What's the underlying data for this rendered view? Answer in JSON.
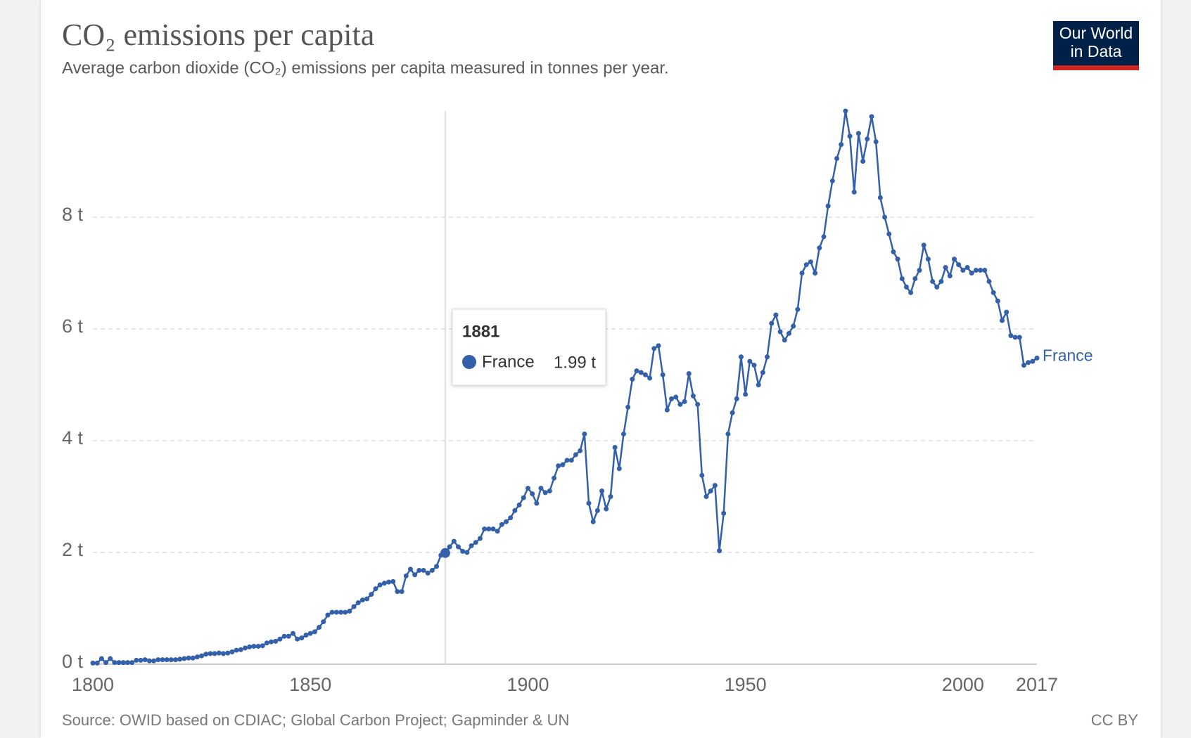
{
  "chart_data": {
    "type": "line",
    "title": "CO₂ emissions per capita",
    "subtitle": "Average carbon dioxide (CO₂) emissions per capita measured in tonnes per year.",
    "source": "Source: OWID based on CDIAC; Global Carbon Project; Gapminder & UN",
    "license": "CC BY",
    "logo": [
      "Our World",
      "in Data"
    ],
    "x": [
      1800,
      1801,
      1802,
      1803,
      1804,
      1805,
      1806,
      1807,
      1808,
      1809,
      1810,
      1811,
      1812,
      1813,
      1814,
      1815,
      1816,
      1817,
      1818,
      1819,
      1820,
      1821,
      1822,
      1823,
      1824,
      1825,
      1826,
      1827,
      1828,
      1829,
      1830,
      1831,
      1832,
      1833,
      1834,
      1835,
      1836,
      1837,
      1838,
      1839,
      1840,
      1841,
      1842,
      1843,
      1844,
      1845,
      1846,
      1847,
      1848,
      1849,
      1850,
      1851,
      1852,
      1853,
      1854,
      1855,
      1856,
      1857,
      1858,
      1859,
      1860,
      1861,
      1862,
      1863,
      1864,
      1865,
      1866,
      1867,
      1868,
      1869,
      1870,
      1871,
      1872,
      1873,
      1874,
      1875,
      1876,
      1877,
      1878,
      1879,
      1880,
      1881,
      1882,
      1883,
      1884,
      1885,
      1886,
      1887,
      1888,
      1889,
      1890,
      1891,
      1892,
      1893,
      1894,
      1895,
      1896,
      1897,
      1898,
      1899,
      1900,
      1901,
      1902,
      1903,
      1904,
      1905,
      1906,
      1907,
      1908,
      1909,
      1910,
      1911,
      1912,
      1913,
      1914,
      1915,
      1916,
      1917,
      1918,
      1919,
      1920,
      1921,
      1922,
      1923,
      1924,
      1925,
      1926,
      1927,
      1928,
      1929,
      1930,
      1931,
      1932,
      1933,
      1934,
      1935,
      1936,
      1937,
      1938,
      1939,
      1940,
      1941,
      1942,
      1943,
      1944,
      1945,
      1946,
      1947,
      1948,
      1949,
      1950,
      1951,
      1952,
      1953,
      1954,
      1955,
      1956,
      1957,
      1958,
      1959,
      1960,
      1961,
      1962,
      1963,
      1964,
      1965,
      1966,
      1967,
      1968,
      1969,
      1970,
      1971,
      1972,
      1973,
      1974,
      1975,
      1976,
      1977,
      1978,
      1979,
      1980,
      1981,
      1982,
      1983,
      1984,
      1985,
      1986,
      1987,
      1988,
      1989,
      1990,
      1991,
      1992,
      1993,
      1994,
      1995,
      1996,
      1997,
      1998,
      1999,
      2000,
      2001,
      2002,
      2003,
      2004,
      2005,
      2006,
      2007,
      2008,
      2009,
      2010,
      2011,
      2012,
      2013,
      2014,
      2015,
      2016,
      2017
    ],
    "series": [
      {
        "name": "France",
        "color": "#3360a9",
        "values": [
          0.02,
          0.02,
          0.1,
          0.03,
          0.1,
          0.03,
          0.03,
          0.03,
          0.03,
          0.03,
          0.07,
          0.07,
          0.08,
          0.06,
          0.06,
          0.08,
          0.08,
          0.08,
          0.08,
          0.08,
          0.09,
          0.1,
          0.11,
          0.11,
          0.13,
          0.15,
          0.18,
          0.19,
          0.19,
          0.2,
          0.19,
          0.2,
          0.22,
          0.25,
          0.26,
          0.29,
          0.31,
          0.32,
          0.32,
          0.33,
          0.38,
          0.4,
          0.41,
          0.45,
          0.5,
          0.5,
          0.55,
          0.45,
          0.47,
          0.52,
          0.55,
          0.58,
          0.66,
          0.76,
          0.88,
          0.93,
          0.93,
          0.93,
          0.93,
          0.95,
          1.03,
          1.1,
          1.15,
          1.17,
          1.25,
          1.35,
          1.42,
          1.45,
          1.47,
          1.48,
          1.3,
          1.3,
          1.58,
          1.7,
          1.6,
          1.68,
          1.68,
          1.63,
          1.68,
          1.75,
          1.95,
          1.99,
          2.1,
          2.2,
          2.1,
          2.02,
          2.0,
          2.12,
          2.18,
          2.25,
          2.42,
          2.42,
          2.42,
          2.38,
          2.5,
          2.55,
          2.62,
          2.75,
          2.85,
          2.98,
          3.15,
          3.05,
          2.88,
          3.15,
          3.07,
          3.1,
          3.33,
          3.55,
          3.57,
          3.65,
          3.65,
          3.75,
          3.82,
          4.12,
          2.88,
          2.55,
          2.75,
          3.1,
          2.78,
          3.0,
          3.88,
          3.5,
          4.12,
          4.6,
          5.1,
          5.25,
          5.22,
          5.18,
          5.12,
          5.65,
          5.7,
          5.18,
          4.55,
          4.75,
          4.78,
          4.65,
          4.7,
          5.2,
          4.8,
          4.65,
          3.38,
          3.0,
          3.1,
          3.2,
          2.03,
          2.7,
          4.12,
          4.5,
          4.75,
          5.5,
          4.83,
          5.42,
          5.35,
          5.0,
          5.22,
          5.5,
          6.1,
          6.25,
          5.95,
          5.8,
          5.92,
          6.05,
          6.35,
          7.0,
          7.15,
          7.2,
          7.0,
          7.45,
          7.65,
          8.2,
          8.65,
          9.05,
          9.3,
          9.9,
          9.45,
          8.45,
          9.5,
          9.0,
          9.4,
          9.8,
          9.35,
          8.35,
          8.0,
          7.7,
          7.38,
          7.25,
          6.9,
          6.75,
          6.65,
          6.9,
          7.05,
          7.5,
          7.25,
          6.85,
          6.75,
          6.85,
          7.1,
          6.95,
          7.25,
          7.15,
          7.05,
          7.1,
          7.0,
          7.05,
          7.05,
          7.05,
          6.85,
          6.65,
          6.5,
          6.15,
          6.3,
          5.88,
          5.85,
          5.85,
          5.35,
          5.4,
          5.42,
          5.48
        ]
      }
    ],
    "xlim": [
      1800,
      2017
    ],
    "xticks": [
      1800,
      1850,
      1900,
      1950,
      2000,
      2017
    ],
    "ylim": [
      0,
      10
    ],
    "yticks": [
      {
        "value": 0,
        "label": "0 t"
      },
      {
        "value": 2,
        "label": "2 t"
      },
      {
        "value": 4,
        "label": "4 t"
      },
      {
        "value": 6,
        "label": "6 t"
      },
      {
        "value": 8,
        "label": "8 t"
      }
    ],
    "grid": true,
    "tooltip": {
      "x": 1881,
      "series": "France",
      "value": 1.99,
      "value_label": "1.99 t"
    }
  }
}
